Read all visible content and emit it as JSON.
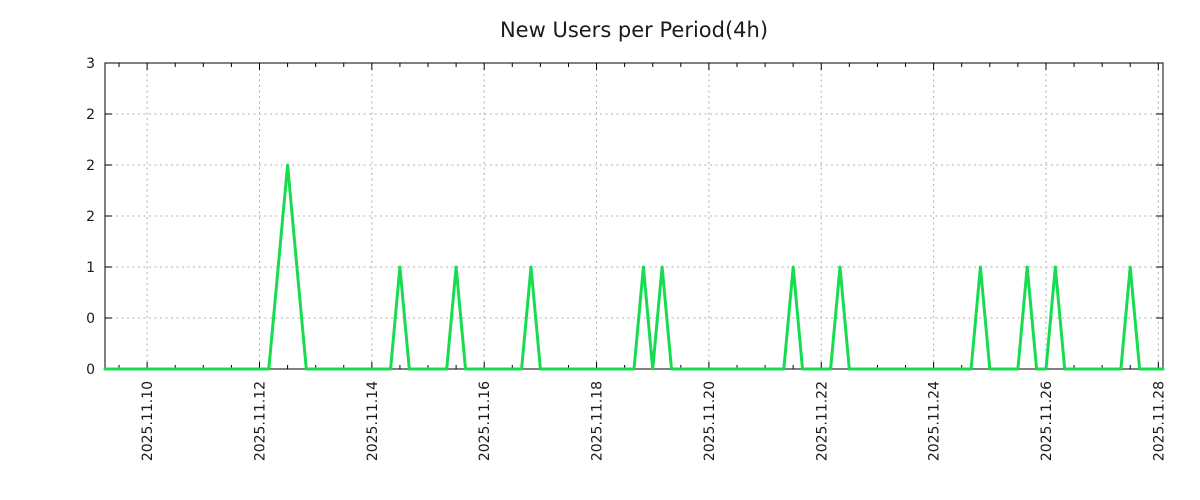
{
  "chart_data": {
    "type": "line",
    "title": "New Users per Period(4h)",
    "bin_interval_hours": 4,
    "baseline_value": 0,
    "ylim": [
      0,
      3
    ],
    "x_range": {
      "start": "2025-11-09 06:00",
      "end": "2025-11-28 02:00"
    },
    "grid": true,
    "legend": "none",
    "minor_tick_hours": 12,
    "points": [
      {
        "t": "2025-11-12 08:00",
        "v": 1
      },
      {
        "t": "2025-11-12 12:00",
        "v": 2
      },
      {
        "t": "2025-11-12 16:00",
        "v": 1
      },
      {
        "t": "2025-11-14 12:00",
        "v": 1
      },
      {
        "t": "2025-11-15 12:00",
        "v": 1
      },
      {
        "t": "2025-11-16 20:00",
        "v": 1
      },
      {
        "t": "2025-11-18 20:00",
        "v": 1
      },
      {
        "t": "2025-11-19 04:00",
        "v": 1
      },
      {
        "t": "2025-11-21 12:00",
        "v": 1
      },
      {
        "t": "2025-11-22 08:00",
        "v": 1
      },
      {
        "t": "2025-11-24 20:00",
        "v": 1
      },
      {
        "t": "2025-11-25 16:00",
        "v": 1
      },
      {
        "t": "2025-11-26 04:00",
        "v": 1
      },
      {
        "t": "2025-11-27 12:00",
        "v": 1
      }
    ],
    "x_ticks": [
      {
        "date": "2025-11-10",
        "label": "2025.11.10"
      },
      {
        "date": "2025-11-12",
        "label": "2025.11.12"
      },
      {
        "date": "2025-11-14",
        "label": "2025.11.14"
      },
      {
        "date": "2025-11-16",
        "label": "2025.11.16"
      },
      {
        "date": "2025-11-18",
        "label": "2025.11.18"
      },
      {
        "date": "2025-11-20",
        "label": "2025.11.20"
      },
      {
        "date": "2025-11-22",
        "label": "2025.11.22"
      },
      {
        "date": "2025-11-24",
        "label": "2025.11.24"
      },
      {
        "date": "2025-11-26",
        "label": "2025.11.26"
      },
      {
        "date": "2025-11-28",
        "label": "2025.11.28"
      }
    ],
    "y_ticks": [
      {
        "value": 0,
        "label": "0"
      },
      {
        "value": 0.5,
        "label": "0"
      },
      {
        "value": 1,
        "label": "1"
      },
      {
        "value": 1.5,
        "label": "2"
      },
      {
        "value": 2,
        "label": "2"
      },
      {
        "value": 2.5,
        "label": "2"
      },
      {
        "value": 3,
        "label": "3"
      }
    ],
    "colors": {
      "line": "#18dc50",
      "grid": "#b0b0b0",
      "axis": "#000000",
      "text": "#1a1a1a",
      "background": "#ffffff"
    }
  }
}
